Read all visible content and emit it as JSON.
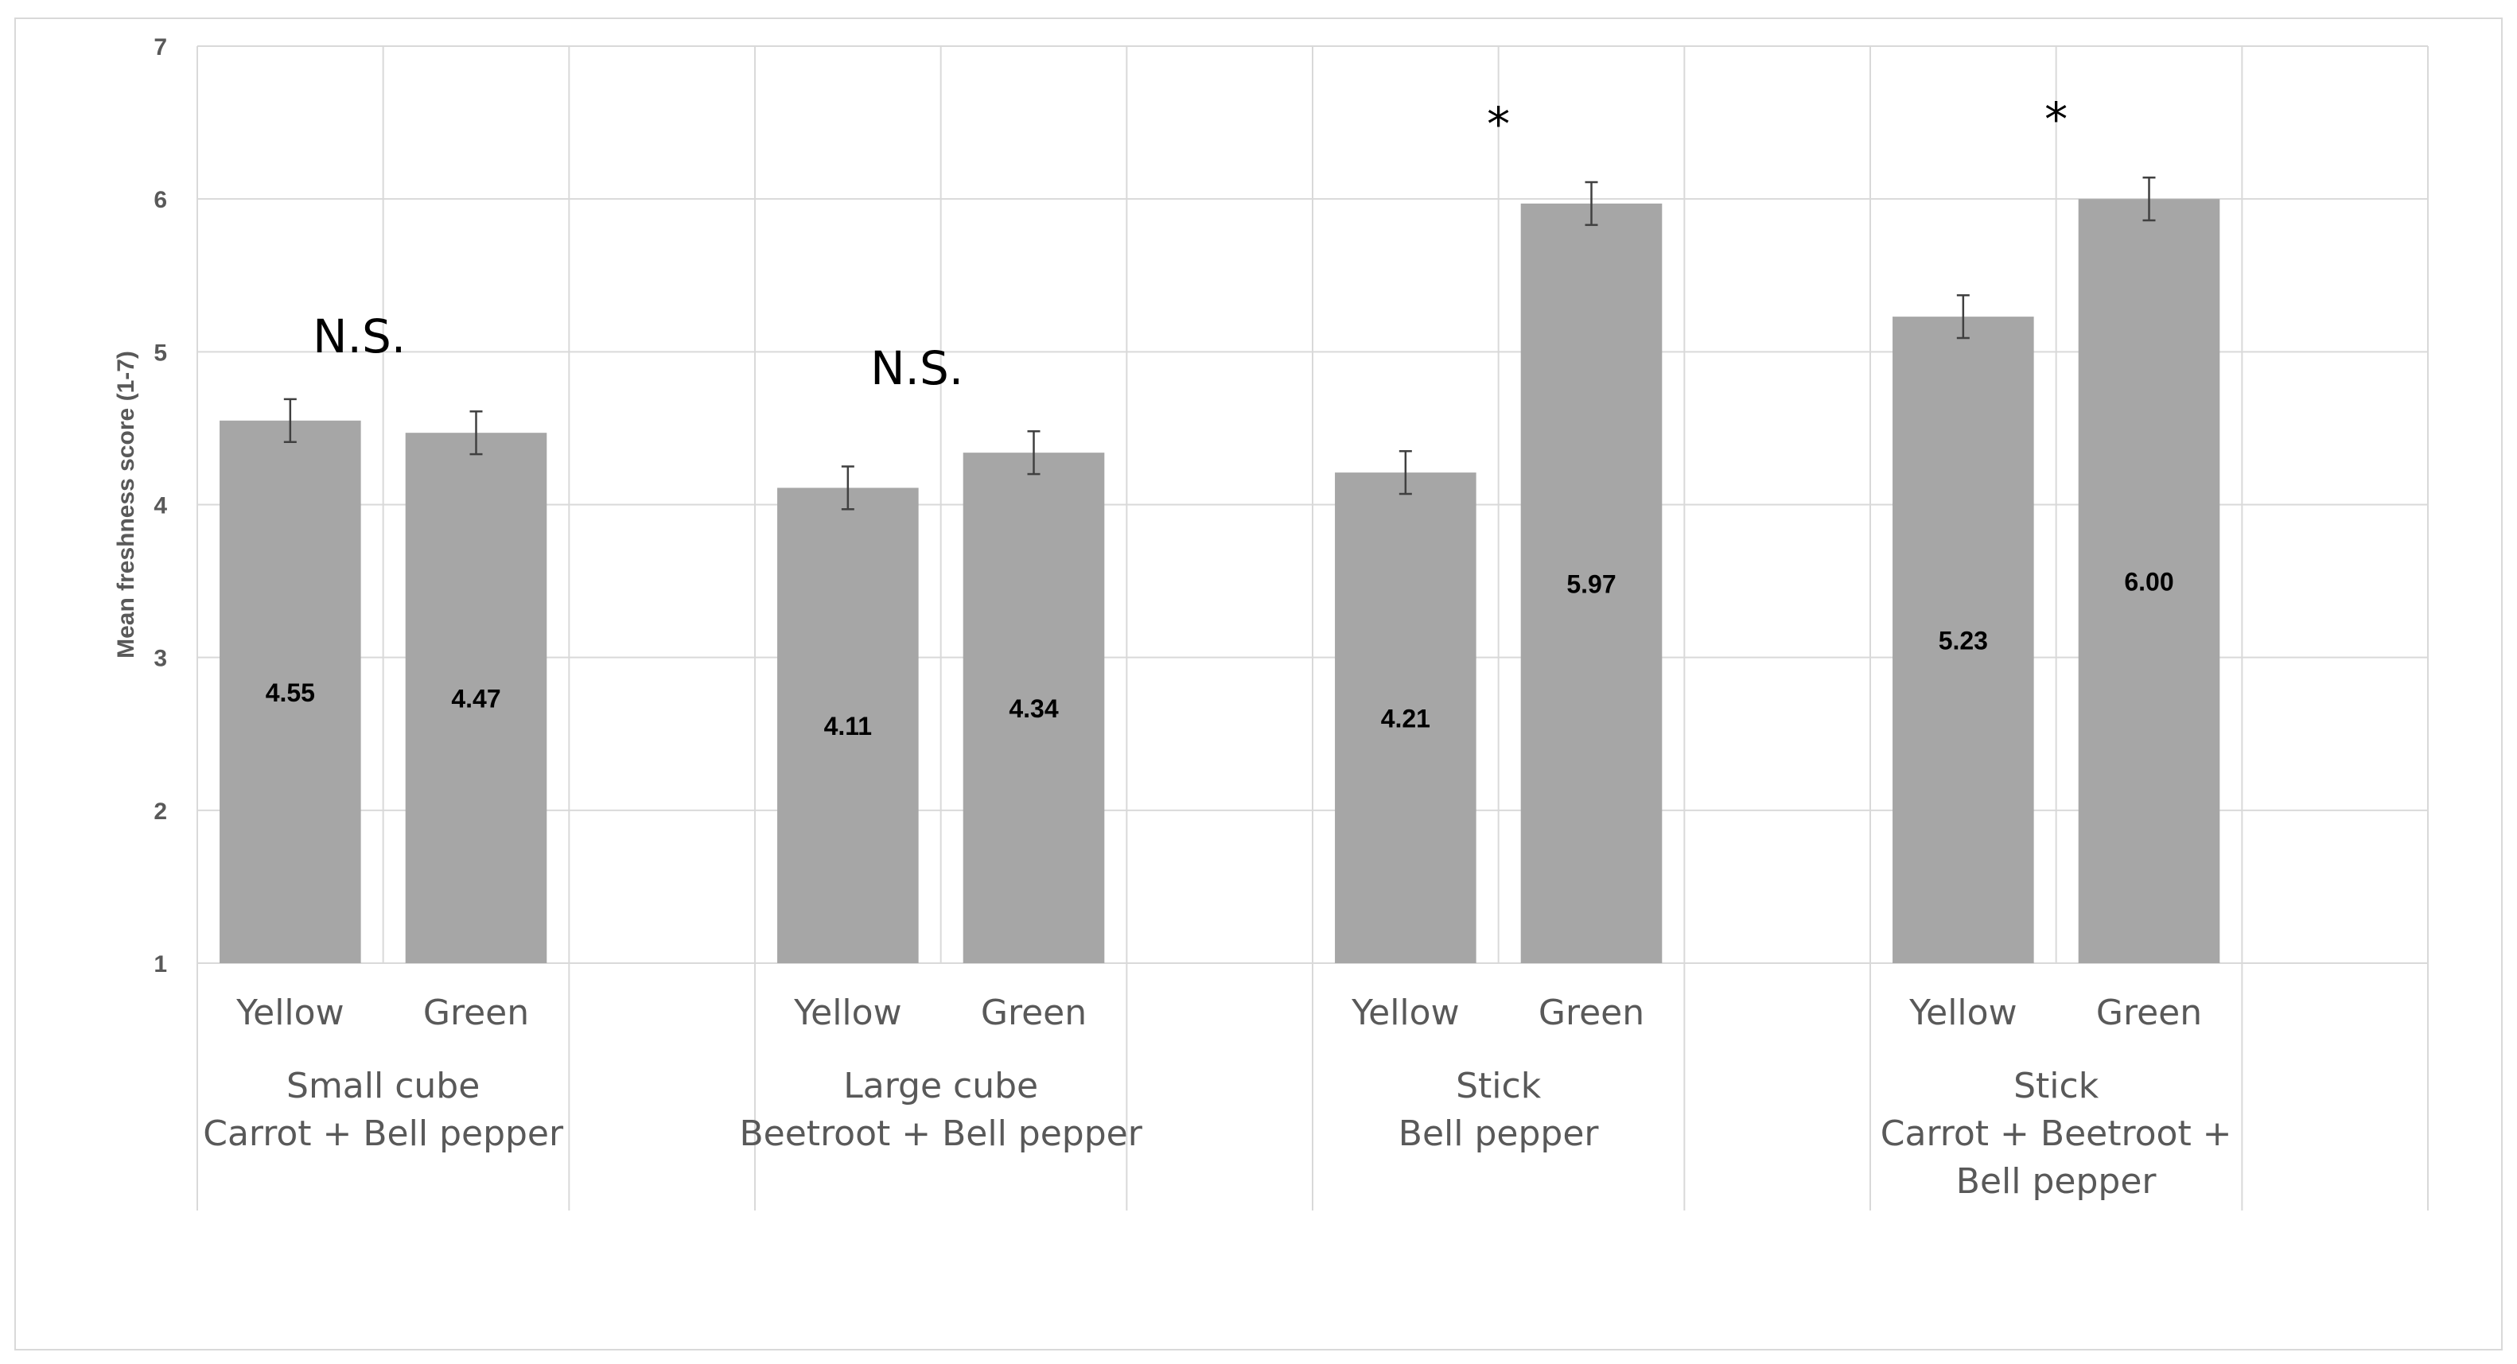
{
  "chart_data": {
    "type": "bar",
    "ylabel": "Mean freshness score (1-7)",
    "xlabel": "",
    "ylim": [
      1,
      7
    ],
    "yticks": [
      1,
      2,
      3,
      4,
      5,
      6,
      7
    ],
    "grid": true,
    "bar_color": "#a6a6a6",
    "groups": [
      {
        "label_lines": [
          "Small cube",
          "Carrot + Bell pepper"
        ],
        "significance": "N.S.",
        "bars": [
          {
            "category": "Yellow",
            "value": 4.55,
            "value_label": "4.55",
            "error": 0.14
          },
          {
            "category": "Green",
            "value": 4.47,
            "value_label": "4.47",
            "error": 0.14
          }
        ]
      },
      {
        "label_lines": [
          "Large cube",
          "Beetroot + Bell pepper"
        ],
        "significance": "N.S.",
        "bars": [
          {
            "category": "Yellow",
            "value": 4.11,
            "value_label": "4.11",
            "error": 0.14
          },
          {
            "category": "Green",
            "value": 4.34,
            "value_label": "4.34",
            "error": 0.14
          }
        ]
      },
      {
        "label_lines": [
          "Stick",
          "Bell pepper"
        ],
        "significance": "*",
        "bars": [
          {
            "category": "Yellow",
            "value": 4.21,
            "value_label": "4.21",
            "error": 0.14
          },
          {
            "category": "Green",
            "value": 5.97,
            "value_label": "5.97",
            "error": 0.14
          }
        ]
      },
      {
        "label_lines": [
          "Stick",
          "Carrot + Beetroot +",
          "Bell pepper"
        ],
        "significance": "*",
        "bars": [
          {
            "category": "Yellow",
            "value": 5.23,
            "value_label": "5.23",
            "error": 0.14
          },
          {
            "category": "Green",
            "value": 6.0,
            "value_label": "6.00",
            "error": 0.14
          }
        ]
      }
    ]
  }
}
